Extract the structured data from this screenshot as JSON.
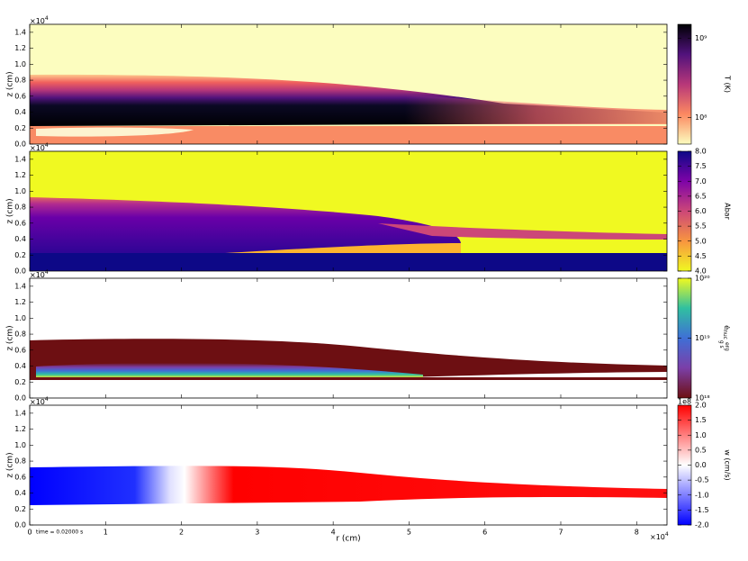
{
  "chart_data": [
    {
      "type": "heatmap",
      "ylabel": "z  (cm)",
      "y_multiplier": {
        "base": "×10",
        "exp": "4"
      },
      "ylim": [
        0,
        1.5
      ],
      "yticks": [
        {
          "value": 0,
          "label": "0.0"
        },
        0.2,
        0.4,
        0.6,
        0.8,
        {
          "value": 1,
          "label": "1.0"
        },
        1.2,
        1.4
      ],
      "colorbar": {
        "label": "T  (K)",
        "log": true,
        "lim": [
          46000000,
          1500000000
        ],
        "ticks": [
          {
            "value": 100000000,
            "label": "10⁸"
          },
          {
            "value": 1000000000,
            "label": "10⁹"
          }
        ],
        "colors": [
          "#fcfdbf",
          "#fc8961",
          "#b73779",
          "#51127c",
          "#000004"
        ]
      }
    },
    {
      "type": "heatmap",
      "ylabel": "z  (cm)",
      "y_multiplier": {
        "base": "×10",
        "exp": "4"
      },
      "ylim": [
        0,
        1.5
      ],
      "yticks": [
        {
          "value": 0,
          "label": "0.0"
        },
        0.2,
        0.4,
        0.6,
        0.8,
        {
          "value": 1,
          "label": "1.0"
        },
        1.2,
        1.4
      ],
      "colorbar": {
        "label": "Abar",
        "log": false,
        "lim": [
          4,
          8
        ],
        "ticks": [
          {
            "value": 4,
            "label": "4.0"
          },
          4.5,
          {
            "value": 5,
            "label": "5.0"
          },
          5.5,
          {
            "value": 6,
            "label": "6.0"
          },
          6.5,
          {
            "value": 7,
            "label": "7.0"
          },
          7.5,
          {
            "value": 8,
            "label": "8.0"
          }
        ],
        "colors": [
          "#f0f921",
          "#f89540",
          "#cc4778",
          "#7e03a8",
          "#0d0887"
        ]
      }
    },
    {
      "type": "heatmap",
      "ylabel": "z  (cm)",
      "y_multiplier": {
        "base": "×10",
        "exp": "4"
      },
      "ylim": [
        0,
        1.5
      ],
      "yticks": [
        {
          "value": 0,
          "label": "0.0"
        },
        0.2,
        0.4,
        0.6,
        0.8,
        {
          "value": 1,
          "label": "1.0"
        },
        1.2,
        1.4
      ],
      "colorbar": {
        "label": {
          "symbol": "ė",
          "sub": "nuc",
          "num": "erg",
          "den": "g s"
        },
        "log": true,
        "lim": [
          1000000000000000000,
          100000000000000000000
        ],
        "ticks": [
          {
            "value": 1000000000000000000,
            "label": "10¹⁸"
          },
          {
            "value": 10000000000000000000,
            "label": "10¹⁹"
          },
          {
            "value": 100000000000000000000,
            "label": "10²⁰"
          }
        ],
        "colors": [
          "#6d0f12",
          "#7b3fa8",
          "#3f6fd6",
          "#30c0a0",
          "#f0f921"
        ]
      }
    },
    {
      "type": "heatmap",
      "ylabel": "z  (cm)",
      "y_multiplier": {
        "base": "×10",
        "exp": "4"
      },
      "ylim": [
        0,
        1.5
      ],
      "yticks": [
        {
          "value": 0,
          "label": "0.0"
        },
        0.2,
        0.4,
        0.6,
        0.8,
        {
          "value": 1,
          "label": "1.0"
        },
        1.2,
        1.4
      ],
      "xlabel": "r  (cm)",
      "x_multiplier": {
        "base": "×10",
        "exp": "4"
      },
      "xlim": [
        0,
        8.4
      ],
      "xticks": [
        0,
        1,
        2,
        3,
        4,
        5,
        6,
        7,
        8
      ],
      "annotation": "time =  0.02000 s",
      "colorbar": {
        "label": "w  (cm/s)",
        "multiplier": "1e8",
        "log": false,
        "lim": [
          -2,
          2
        ],
        "ticks": [
          {
            "value": -2,
            "label": "-2.0"
          },
          -1.5,
          {
            "value": -1,
            "label": "-1.0"
          },
          -0.5,
          {
            "value": 0,
            "label": "0.0"
          },
          0.5,
          {
            "value": 1,
            "label": "1.0"
          },
          1.5,
          {
            "value": 2,
            "label": "2.0"
          }
        ],
        "colors": [
          "#0000ff",
          "#ffffff",
          "#ff0000"
        ]
      }
    }
  ]
}
